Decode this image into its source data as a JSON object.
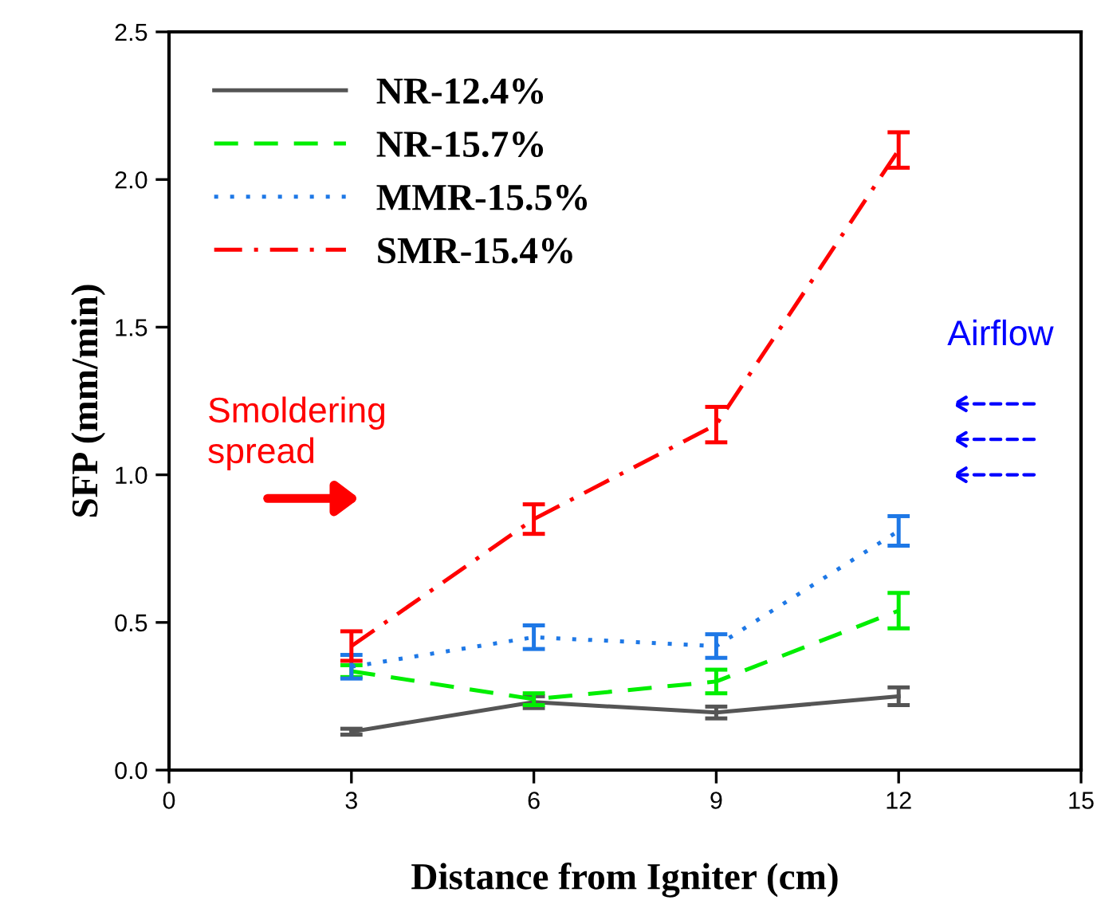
{
  "chart_data": {
    "type": "line",
    "xlabel": "Distance from Igniter (cm)",
    "ylabel": "SFP (mm/min)",
    "x": [
      3,
      6,
      9,
      12
    ],
    "xlim": [
      0,
      15
    ],
    "xticks": [
      0,
      3,
      6,
      9,
      12,
      15
    ],
    "ylim": [
      0,
      2.5
    ],
    "yticks": [
      {
        "value": 0,
        "label": "0.0"
      },
      0.5,
      {
        "value": 1,
        "label": "1.0"
      },
      1.5,
      {
        "value": 2,
        "label": "2.0"
      },
      2.5
    ],
    "grid": false,
    "legend": "top left",
    "marker": "none",
    "series": [
      {
        "name": "NR-12.4%",
        "color": "#555555",
        "line_style": "solid",
        "values": [
          0.13,
          0.23,
          0.195,
          0.25
        ],
        "errors": [
          0.01,
          0.02,
          0.02,
          0.03
        ]
      },
      {
        "name": "NR-15.7%",
        "color": "#00ee00",
        "line_style": "dashed",
        "values": [
          0.335,
          0.24,
          0.3,
          0.54
        ],
        "errors": [
          0.02,
          0.02,
          0.04,
          0.06
        ]
      },
      {
        "name": "MMR-15.5%",
        "color": "#1e78e6",
        "line_style": "dotted",
        "values": [
          0.35,
          0.45,
          0.42,
          0.81
        ],
        "errors": [
          0.04,
          0.04,
          0.04,
          0.05
        ]
      },
      {
        "name": "SMR-15.4%",
        "color": "#ff0000",
        "line_style": "dashdot",
        "values": [
          0.42,
          0.85,
          1.17,
          2.1
        ],
        "errors": [
          0.05,
          0.05,
          0.06,
          0.06
        ]
      }
    ],
    "annotations": [
      "Smoldering\nspread",
      "Airflow"
    ]
  }
}
